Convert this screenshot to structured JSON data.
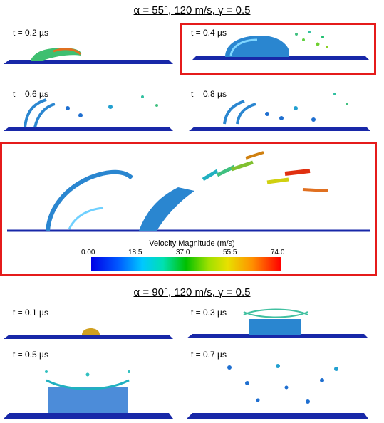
{
  "sections": {
    "top_heading": "α = 55°, 120 m/s, γ = 0.5",
    "bottom_heading": "α = 90°, 120 m/s, γ = 0.5"
  },
  "panels_top": [
    {
      "label": "t = 0.2 µs"
    },
    {
      "label": "t = 0.4 µs",
      "highlighted": true
    },
    {
      "label": "t = 0.6 µs"
    },
    {
      "label": "t = 0.8 µs"
    }
  ],
  "panels_bottom": [
    {
      "label": "t = 0.1 µs"
    },
    {
      "label": "t = 0.3 µs"
    },
    {
      "label": "t = 0.5 µs"
    },
    {
      "label": "t = 0.7 µs"
    }
  ],
  "colorbar": {
    "title": "Velocity Magnitude (m/s)",
    "ticks": [
      "0.00",
      "18.5",
      "37.0",
      "55.5",
      "74.0"
    ],
    "min": 0.0,
    "max": 74.0,
    "colors": [
      "#0000e6",
      "#00c8ff",
      "#00c000",
      "#e8e000",
      "#ff0000"
    ]
  },
  "highlight_color": "#e51b1b"
}
